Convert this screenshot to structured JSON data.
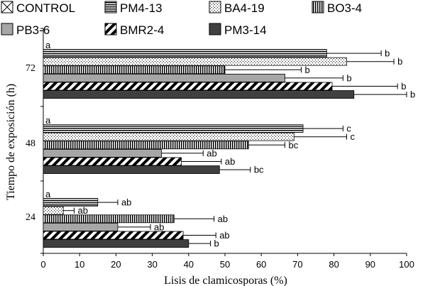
{
  "chart_data": {
    "type": "bar",
    "orientation": "horizontal",
    "categories": [
      "72",
      "48",
      "24"
    ],
    "xlabel": "Lisis de clamicosporas (%)",
    "ylabel": "Tiempo de exposición (h)",
    "xlim": [
      0,
      100
    ],
    "xticks": [
      "0",
      "10",
      "20",
      "30",
      "40",
      "50",
      "60",
      "70",
      "80",
      "90",
      "100"
    ],
    "legend_position": "top",
    "series": [
      {
        "name": "CONTROL",
        "pattern": "crossed-box",
        "color": "#ffffff",
        "values": [
          0,
          0,
          0
        ],
        "errors": [
          0,
          0,
          0
        ],
        "labels": [
          "a",
          "a",
          "a"
        ]
      },
      {
        "name": "PM4-13",
        "pattern": "horizontal-lines",
        "color": "#ffffff",
        "values": [
          78,
          71.5,
          15
        ],
        "errors": [
          15,
          11,
          5.5
        ],
        "labels": [
          "b",
          "c",
          "ab"
        ]
      },
      {
        "name": "BA4-19",
        "pattern": "dots",
        "color": "#ffffff",
        "values": [
          83.5,
          69,
          5.5
        ],
        "errors": [
          13,
          14.5,
          3
        ],
        "labels": [
          "b",
          "c",
          "ab"
        ]
      },
      {
        "name": "BO3-4",
        "pattern": "vertical-lines",
        "color": "#ffffff",
        "values": [
          50,
          56.5,
          36
        ],
        "errors": [
          21,
          10,
          11
        ],
        "labels": [
          "b",
          "bc",
          "ab"
        ]
      },
      {
        "name": "PB3-6",
        "pattern": "solid",
        "color": "#a6a6a6",
        "values": [
          66.5,
          32.5,
          20.5
        ],
        "errors": [
          16,
          11.5,
          9
        ],
        "labels": [
          "b",
          "ab",
          "ab"
        ]
      },
      {
        "name": "BMR2-4",
        "pattern": "diagonal",
        "color": "#ffffff",
        "values": [
          79.5,
          38,
          38.5
        ],
        "errors": [
          18,
          11,
          9
        ],
        "labels": [
          "b",
          "ab",
          "ab"
        ]
      },
      {
        "name": "PM3-14",
        "pattern": "solid",
        "color": "#404040",
        "values": [
          85.5,
          48.5,
          40
        ],
        "errors": [
          14.5,
          8.5,
          6
        ],
        "labels": [
          "b",
          "bc",
          "b"
        ]
      }
    ]
  }
}
